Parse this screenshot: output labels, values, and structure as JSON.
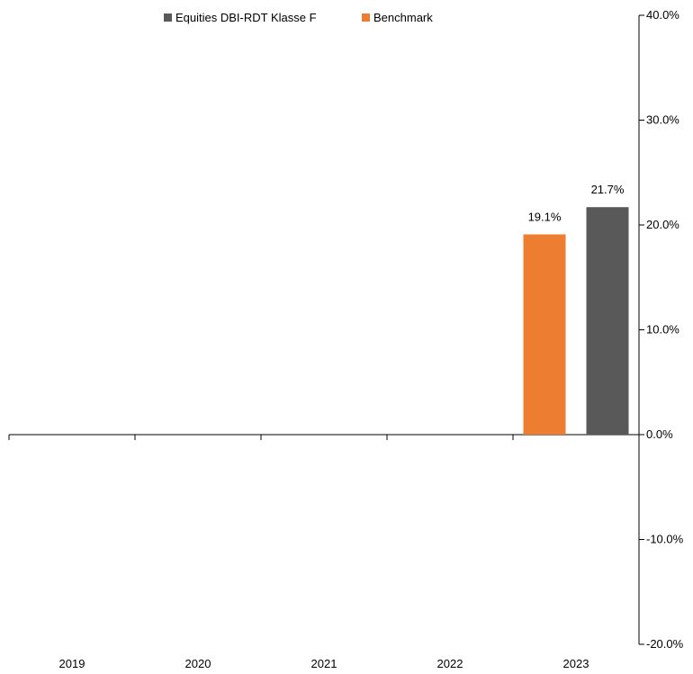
{
  "chart_data": {
    "type": "bar",
    "categories": [
      "2019",
      "2020",
      "2021",
      "2022",
      "2023"
    ],
    "series": [
      {
        "name": "Benchmark",
        "color": "#ED7D31",
        "values": [
          null,
          null,
          null,
          null,
          19.1
        ]
      },
      {
        "name": "Equities DBI-RDT Klasse F",
        "color": "#595959",
        "values": [
          null,
          null,
          null,
          null,
          21.7
        ]
      }
    ],
    "data_labels": [
      "19.1%",
      "21.7%"
    ],
    "y_ticks": [
      "40.0%",
      "30.0%",
      "20.0%",
      "10.0%",
      "0.0%",
      "-10.0%",
      "-20.0%"
    ],
    "ylim": [
      -20,
      40
    ],
    "y_axis_side": "right",
    "grid": false,
    "legend_position": "top",
    "title": "",
    "xlabel": "",
    "ylabel": ""
  }
}
